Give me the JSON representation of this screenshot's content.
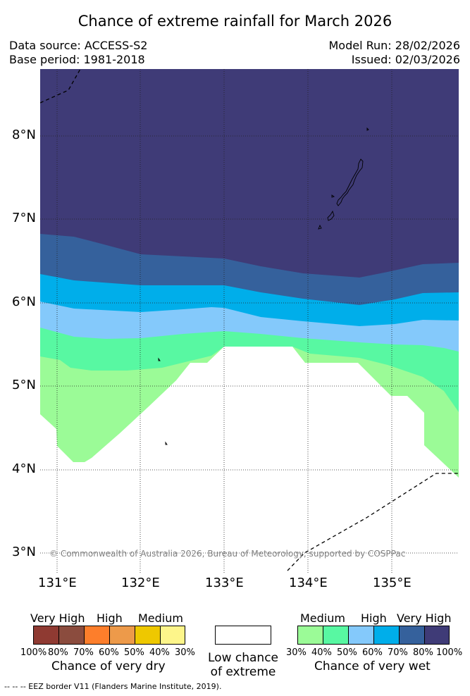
{
  "title": "Chance of extreme rainfall for March 2026",
  "meta": {
    "data_source": "Data source: ACCESS-S2",
    "base_period": "Base period: 1981-2018",
    "model_run": "Model Run: 28/02/2026",
    "issued": "Issued: 02/03/2026"
  },
  "map": {
    "lat_labels": [
      "8°N",
      "7°N",
      "6°N",
      "5°N",
      "4°N",
      "3°N"
    ],
    "lon_labels": [
      "131°E",
      "132°E",
      "133°E",
      "134°E",
      "135°E"
    ],
    "copyright": "© Commonwealth of Australia 2026, Bureau of Meteorology, supported by COSPPac",
    "zones": [
      {
        "name": "very-wet-80-100",
        "color": "#3f3b77"
      },
      {
        "name": "very-wet-70-80",
        "color": "#35619c"
      },
      {
        "name": "high-wet-60-70",
        "color": "#00aeea"
      },
      {
        "name": "high-wet-50-60",
        "color": "#84c9fb"
      },
      {
        "name": "medium-wet-40-50",
        "color": "#58f8a2"
      },
      {
        "name": "medium-wet-30-40",
        "color": "#9bfb97"
      },
      {
        "name": "low-chance",
        "color": "#ffffff"
      }
    ]
  },
  "dry_legend": {
    "categories": [
      "Very High",
      "High",
      "Medium"
    ],
    "colors": [
      "#8f3a32",
      "#8b4c3e",
      "#fd7e2b",
      "#ed9a4a",
      "#eec800",
      "#fdf58a"
    ],
    "ticks": [
      "100%",
      "80%",
      "70%",
      "60%",
      "50%",
      "40%",
      "30%"
    ],
    "title": "Chance of very dry"
  },
  "low_legend": {
    "line1": "Low chance",
    "line2": "of extreme"
  },
  "wet_legend": {
    "categories": [
      "Medium",
      "High",
      "Very High"
    ],
    "colors": [
      "#9bfb97",
      "#58f8a2",
      "#84c9fb",
      "#00aeea",
      "#35619c",
      "#3f3b77"
    ],
    "ticks": [
      "30%",
      "40%",
      "50%",
      "60%",
      "70%",
      "80%",
      "100%"
    ],
    "title": "Chance of very wet"
  },
  "footer": "--  --  -- EEZ border V11 (Flanders Marine Institute, 2019)."
}
